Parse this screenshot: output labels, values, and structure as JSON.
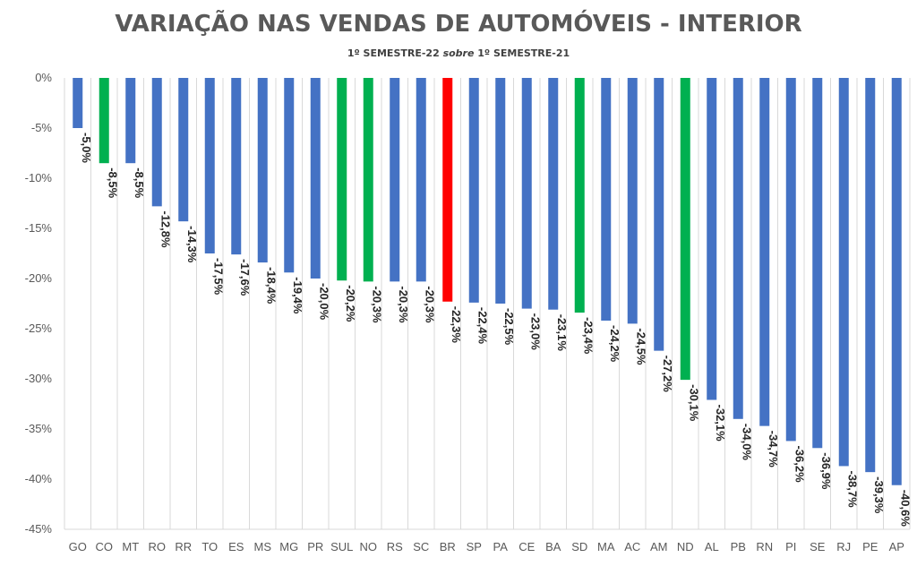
{
  "chart_data": {
    "type": "bar",
    "title": "VARIAÇÃO NAS VENDAS DE AUTOMÓVEIS - INTERIOR",
    "subtitle": {
      "part1": "1º SEMESTRE-22 ",
      "part2": "sobre",
      "part3": " 1º SEMESTRE-21"
    },
    "categories": [
      "GO",
      "CO",
      "MT",
      "RO",
      "RR",
      "TO",
      "ES",
      "MS",
      "MG",
      "PR",
      "SUL",
      "NO",
      "RS",
      "SC",
      "BR",
      "SP",
      "PA",
      "CE",
      "BA",
      "SD",
      "MA",
      "AC",
      "AM",
      "ND",
      "AL",
      "PB",
      "RN",
      "PI",
      "SE",
      "RJ",
      "PE",
      "AP"
    ],
    "values": [
      -5.0,
      -8.5,
      -8.5,
      -12.8,
      -14.3,
      -17.5,
      -17.6,
      -18.4,
      -19.4,
      -20.0,
      -20.2,
      -20.3,
      -20.3,
      -20.3,
      -22.3,
      -22.4,
      -22.5,
      -23.0,
      -23.1,
      -23.4,
      -24.2,
      -24.5,
      -27.2,
      -30.1,
      -32.1,
      -34.0,
      -34.7,
      -36.2,
      -36.9,
      -38.7,
      -39.3,
      -40.6
    ],
    "data_labels": [
      "-5,0%",
      "-8,5%",
      "-8,5%",
      "-12,8%",
      "-14,3%",
      "-17,5%",
      "-17,6%",
      "-18,4%",
      "-19,4%",
      "-20,0%",
      "-20,2%",
      "-20,3%",
      "-20,3%",
      "-20,3%",
      "-22,3%",
      "-22,4%",
      "-22,5%",
      "-23,0%",
      "-23,1%",
      "-23,4%",
      "-24,2%",
      "-24,5%",
      "-27,2%",
      "-30,1%",
      "-32,1%",
      "-34,0%",
      "-34,7%",
      "-36,2%",
      "-36,9%",
      "-38,7%",
      "-39,3%",
      "-40,6%"
    ],
    "bar_colors": [
      "#4472C4",
      "#00B050",
      "#4472C4",
      "#4472C4",
      "#4472C4",
      "#4472C4",
      "#4472C4",
      "#4472C4",
      "#4472C4",
      "#4472C4",
      "#00B050",
      "#00B050",
      "#4472C4",
      "#4472C4",
      "#FF0000",
      "#4472C4",
      "#4472C4",
      "#4472C4",
      "#4472C4",
      "#00B050",
      "#4472C4",
      "#4472C4",
      "#4472C4",
      "#00B050",
      "#4472C4",
      "#4472C4",
      "#4472C4",
      "#4472C4",
      "#4472C4",
      "#4472C4",
      "#4472C4",
      "#4472C4"
    ],
    "yticks": [
      0,
      -5,
      -10,
      -15,
      -20,
      -25,
      -30,
      -35,
      -40,
      -45
    ],
    "ytick_labels": [
      "0%",
      "-5%",
      "-10%",
      "-15%",
      "-20%",
      "-25%",
      "-30%",
      "-35%",
      "-40%",
      "-45%"
    ],
    "ylim": [
      -45,
      0
    ],
    "xlabel": "",
    "ylabel": "",
    "grid": "vertical",
    "legend": "none"
  }
}
